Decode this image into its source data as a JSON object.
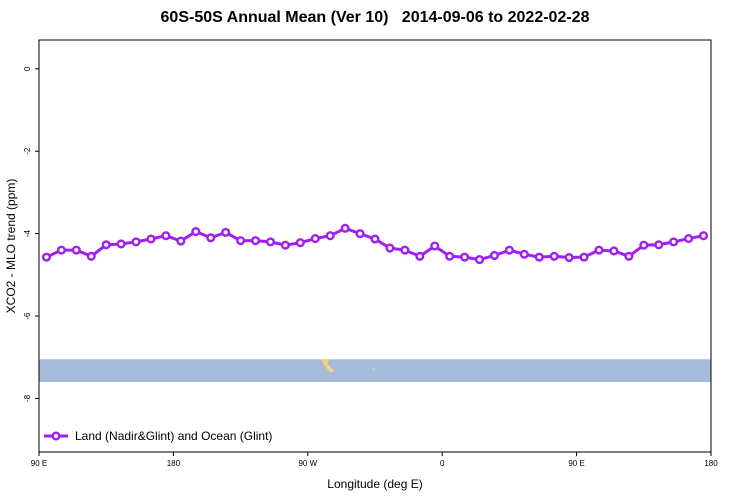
{
  "chart_data": {
    "type": "line",
    "title": "60S-50S Annual Mean (Ver 10)   2014-09-06 to 2022-02-28",
    "xlabel": "Longitude (deg E)",
    "ylabel": "XCO2 - MLO trend (ppm)",
    "x_ticks": [
      {
        "value": 90,
        "label": "90 E"
      },
      {
        "value": 180,
        "label": "180"
      },
      {
        "value": 270,
        "label": "90 W"
      },
      {
        "value": 360,
        "label": "0"
      },
      {
        "value": 450,
        "label": "90 E"
      },
      {
        "value": 540,
        "label": "180"
      }
    ],
    "y_ticks": [
      0,
      -2,
      -4,
      -6,
      -8
    ],
    "xlim": [
      90,
      540
    ],
    "ylim": [
      -9.3,
      0.7
    ],
    "grid": false,
    "legend": "bottom-left",
    "colors": {
      "series": "#a020f0",
      "marker_fill": "#ffffff",
      "map_band": "#a4bcd9",
      "land": "#f2d27a"
    },
    "map_band_y": [
      -7.6,
      -7.05
    ],
    "series": [
      {
        "name": "Land (Nadir&Glint) and Ocean (Glint)",
        "x": [
          95,
          105,
          115,
          125,
          135,
          145,
          155,
          165,
          175,
          185,
          195,
          205,
          215,
          225,
          235,
          245,
          255,
          265,
          275,
          285,
          295,
          305,
          315,
          325,
          335,
          345,
          355,
          365,
          375,
          385,
          395,
          405,
          415,
          425,
          435,
          445,
          455,
          465,
          475,
          485,
          495,
          505,
          515,
          525,
          535
        ],
        "values": [
          -4.57,
          -4.4,
          -4.4,
          -4.55,
          -4.27,
          -4.25,
          -4.2,
          -4.13,
          -4.05,
          -4.18,
          -3.95,
          -4.1,
          -3.97,
          -4.17,
          -4.17,
          -4.2,
          -4.28,
          -4.22,
          -4.12,
          -4.05,
          -3.87,
          -4.0,
          -4.13,
          -4.35,
          -4.4,
          -4.55,
          -4.3,
          -4.55,
          -4.57,
          -4.63,
          -4.53,
          -4.4,
          -4.5,
          -4.57,
          -4.55,
          -4.58,
          -4.57,
          -4.4,
          -4.42,
          -4.55,
          -4.28,
          -4.27,
          -4.2,
          -4.12,
          -4.05
        ]
      }
    ]
  }
}
